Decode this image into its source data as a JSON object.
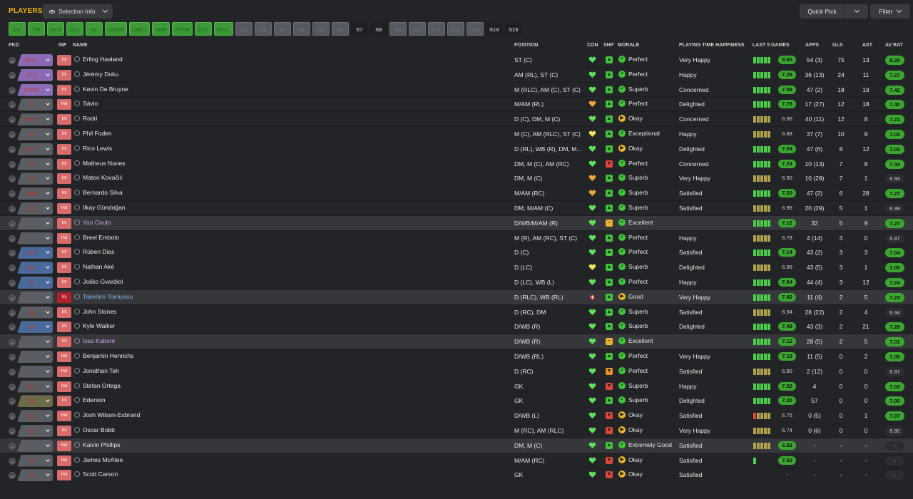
{
  "header": {
    "title": "PLAYERS",
    "selection_label": "Selection Info",
    "quick_pick_label": "Quick Pick",
    "filter_label": "Filter"
  },
  "colors": {
    "accent": "#f5b400",
    "green": "#3aa62f",
    "red": "#c7312b",
    "yellow": "#e8b52a",
    "purple": "#8b6bb5",
    "blue": "#4a6a9c",
    "olive": "#6b6a4a"
  },
  "chips": [
    {
      "label": "GK",
      "state": "on"
    },
    {
      "label": "DR",
      "state": "on"
    },
    {
      "label": "DCR",
      "state": "on"
    },
    {
      "label": "DCL",
      "state": "on"
    },
    {
      "label": "DL",
      "state": "on"
    },
    {
      "label": "OMCR",
      "state": "on"
    },
    {
      "label": "DMCL",
      "state": "on"
    },
    {
      "label": "AMR",
      "state": "on"
    },
    {
      "label": "STCR",
      "state": "on"
    },
    {
      "label": "STC",
      "state": "on"
    },
    {
      "label": "STCL",
      "state": "on"
    },
    {
      "label": "S1",
      "state": "off"
    },
    {
      "label": "S2",
      "state": "off"
    },
    {
      "label": "S3",
      "state": "off"
    },
    {
      "label": "S4",
      "state": "off"
    },
    {
      "label": "S5",
      "state": "off"
    },
    {
      "label": "S6",
      "state": "off"
    },
    {
      "label": "S7",
      "state": "plain"
    },
    {
      "label": "S8",
      "state": "plain"
    },
    {
      "label": "S9",
      "state": "off"
    },
    {
      "label": "S10",
      "state": "off"
    },
    {
      "label": "S11",
      "state": "off"
    },
    {
      "label": "S12",
      "state": "off"
    },
    {
      "label": "S13",
      "state": "off"
    },
    {
      "label": "S14",
      "state": "plain"
    },
    {
      "label": "S15",
      "state": "plain"
    }
  ],
  "columns": {
    "pkd": "PKD",
    "inf": "INF",
    "name": "NAME",
    "position": "POSITION",
    "con": "CON",
    "shp": "SHP",
    "morale": "MORALE",
    "pth": "PLAYING TIME HAPPINESS",
    "last5": "LAST 5 GAMES",
    "apps": "APPS",
    "gls": "GLS",
    "ast": "AST",
    "avrat": "AV RAT"
  },
  "players": [
    {
      "pick": "STCL",
      "pick_color": "purple",
      "inf": "Int",
      "name": "Erling Haaland",
      "name_color": "",
      "position": "ST (C)",
      "con": "green",
      "shp": "up",
      "shp_color": "green",
      "morale": "Perfect",
      "morale_color": "green",
      "pth": "Very Happy",
      "form": [
        "g",
        "g",
        "g",
        "g",
        "g"
      ],
      "last": "8.60",
      "last_hi": true,
      "apps": "54 (3)",
      "gls": "75",
      "ast": "13",
      "avrat": "8.20",
      "avrat_hi": true,
      "hl": false
    },
    {
      "pick": "STC",
      "pick_color": "purple",
      "inf": "Int",
      "name": "Jérémy Doku",
      "name_color": "",
      "position": "AM (RL), ST (C)",
      "con": "green",
      "shp": "up",
      "shp_color": "green",
      "morale": "Perfect",
      "morale_color": "green",
      "pth": "Happy",
      "form": [
        "g",
        "g",
        "g",
        "g",
        "g"
      ],
      "last": "7.26",
      "last_hi": true,
      "apps": "36 (13)",
      "gls": "24",
      "ast": "11",
      "avrat": "7.27",
      "avrat_hi": true,
      "hl": false
    },
    {
      "pick": "STCR",
      "pick_color": "purple",
      "inf": "Int",
      "name": "Kevin De Bruyne",
      "name_color": "",
      "position": "M (RLC), AM (C), ST (C)",
      "con": "green",
      "shp": "up",
      "shp_color": "green",
      "morale": "Superb",
      "morale_color": "green",
      "pth": "Concerned",
      "form": [
        "g",
        "g",
        "g",
        "g",
        "g"
      ],
      "last": "7.08",
      "last_hi": true,
      "apps": "47 (2)",
      "gls": "18",
      "ast": "19",
      "avrat": "7.42",
      "avrat_hi": true,
      "hl": false
    },
    {
      "pick": "DL",
      "pick_color": "red",
      "inf": "Hol",
      "name": "Sávio",
      "name_color": "",
      "position": "M/AM (RL)",
      "con": "orange",
      "shp": "up",
      "shp_color": "green",
      "morale": "Perfect",
      "morale_color": "green",
      "pth": "Delighted",
      "form": [
        "g",
        "g",
        "g",
        "g",
        "g"
      ],
      "last": "7.78",
      "last_hi": true,
      "apps": "17 (27)",
      "gls": "12",
      "ast": "18",
      "avrat": "7.40",
      "avrat_hi": true,
      "hl": false
    },
    {
      "pick": "DMCL",
      "pick_color": "red",
      "inf": "Int",
      "name": "Rodri",
      "name_color": "",
      "position": "D (C), DM, M (C)",
      "con": "green",
      "shp": "up",
      "shp_color": "green",
      "morale": "Okay",
      "morale_color": "yellow",
      "pth": "Concerned",
      "form": [
        "o",
        "o",
        "o",
        "o",
        "o"
      ],
      "last": "6.96",
      "last_hi": false,
      "apps": "40 (11)",
      "gls": "12",
      "ast": "8",
      "avrat": "7.21",
      "avrat_hi": true,
      "hl": false
    },
    {
      "pick": "S2",
      "pick_color": "red",
      "inf": "Int",
      "name": "Phil Foden",
      "name_color": "",
      "position": "M (C), AM (RLC), ST (C)",
      "con": "yellow",
      "shp": "up",
      "shp_color": "green",
      "morale": "Exceptional",
      "morale_color": "green",
      "pth": "Happy",
      "form": [
        "o",
        "o",
        "o",
        "o",
        "o"
      ],
      "last": "6.88",
      "last_hi": false,
      "apps": "37 (7)",
      "gls": "10",
      "ast": "9",
      "avrat": "7.03",
      "avrat_hi": true,
      "hl": false
    },
    {
      "pick": "DM...",
      "pick_color": "red",
      "inf": "Int",
      "name": "Rico Lewis",
      "name_color": "",
      "position": "D (RL), WB (R), DM, M...",
      "con": "green",
      "shp": "up",
      "shp_color": "green",
      "morale": "Okay",
      "morale_color": "yellow",
      "pth": "Delighted",
      "form": [
        "g",
        "g",
        "g",
        "g",
        "g"
      ],
      "last": "7.04",
      "last_hi": true,
      "apps": "47 (6)",
      "gls": "8",
      "ast": "12",
      "avrat": "7.03",
      "avrat_hi": true,
      "hl": false
    },
    {
      "pick": "S4",
      "pick_color": "red",
      "inf": "Int",
      "name": "Matheus Nunes",
      "name_color": "",
      "position": "DM, M (C), AM (RC)",
      "con": "green",
      "shp": "down",
      "shp_color": "red",
      "morale": "Perfect",
      "morale_color": "green",
      "pth": "Concerned",
      "form": [
        "g",
        "g",
        "g",
        "g",
        "g"
      ],
      "last": "7.24",
      "last_hi": true,
      "apps": "10 (13)",
      "gls": "7",
      "ast": "8",
      "avrat": "7.44",
      "avrat_hi": true,
      "hl": false
    },
    {
      "pick": "S5",
      "pick_color": "red",
      "inf": "Int",
      "name": "Mateo Kovačić",
      "name_color": "",
      "position": "DM, M (C)",
      "con": "orange",
      "shp": "up",
      "shp_color": "green",
      "morale": "Superb",
      "morale_color": "green",
      "pth": "Very Happy",
      "form": [
        "o",
        "o",
        "o",
        "o",
        "o"
      ],
      "last": "6.90",
      "last_hi": false,
      "apps": "10 (29)",
      "gls": "7",
      "ast": "1",
      "avrat": "6.94",
      "avrat_hi": false,
      "hl": false
    },
    {
      "pick": "AMR",
      "pick_color": "red",
      "inf": "Int",
      "name": "Bernardo Silva",
      "name_color": "",
      "position": "M/AM (RC)",
      "con": "orange",
      "shp": "up",
      "shp_color": "green",
      "morale": "Superb",
      "morale_color": "green",
      "pth": "Satisfied",
      "form": [
        "g",
        "g",
        "g",
        "g",
        "g"
      ],
      "last": "7.20",
      "last_hi": true,
      "apps": "47 (2)",
      "gls": "6",
      "ast": "28",
      "avrat": "7.27",
      "avrat_hi": true,
      "hl": false
    },
    {
      "pick": "S10",
      "pick_color": "red",
      "inf": "Hol",
      "name": "İlkay Gündoğan",
      "name_color": "",
      "position": "DM, M/AM (C)",
      "con": "green",
      "shp": "up",
      "shp_color": "green",
      "morale": "Superb",
      "morale_color": "green",
      "pth": "Satisfied",
      "form": [
        "o",
        "o",
        "o",
        "o",
        "o"
      ],
      "last": "6.96",
      "last_hi": false,
      "apps": "20 (29)",
      "gls": "5",
      "ast": "1",
      "avrat": "6.99",
      "avrat_hi": false,
      "hl": false
    },
    {
      "pick": "-",
      "pick_color": "red",
      "inf": "Int",
      "name": "Yan Couto",
      "name_color": "purple",
      "position": "D/WB/M/AM (R)",
      "con": "green",
      "shp": "flat",
      "shp_color": "yellow",
      "morale": "Excellent",
      "morale_color": "green",
      "pth": "",
      "form": [
        "g",
        "g",
        "g",
        "g",
        "g"
      ],
      "last": "7.12",
      "last_hi": true,
      "apps": "32",
      "gls": "5",
      "ast": "9",
      "avrat": "7.27",
      "avrat_hi": true,
      "hl": true
    },
    {
      "pick": "-",
      "pick_color": "red",
      "inf": "Hol",
      "name": "Breel Embolo",
      "name_color": "",
      "position": "M (R), AM (RC), ST (C)",
      "con": "green",
      "shp": "up",
      "shp_color": "green",
      "morale": "Perfect",
      "morale_color": "green",
      "pth": "Happy",
      "form": [
        "o",
        "o",
        "o",
        "o",
        "o"
      ],
      "last": "6.78",
      "last_hi": false,
      "apps": "4 (14)",
      "gls": "3",
      "ast": "0",
      "avrat": "6.87",
      "avrat_hi": false,
      "hl": false
    },
    {
      "pick": "DCR",
      "pick_color": "blue",
      "inf": "Int",
      "name": "Rúben Dias",
      "name_color": "",
      "position": "D (C)",
      "con": "green",
      "shp": "up",
      "shp_color": "green",
      "morale": "Perfect",
      "morale_color": "green",
      "pth": "Satisfied",
      "form": [
        "g",
        "g",
        "g",
        "g",
        "g"
      ],
      "last": "7.14",
      "last_hi": true,
      "apps": "43 (2)",
      "gls": "3",
      "ast": "3",
      "avrat": "7.04",
      "avrat_hi": true,
      "hl": false
    },
    {
      "pick": "DCL",
      "pick_color": "blue",
      "inf": "Int",
      "name": "Nathan Aké",
      "name_color": "",
      "position": "D (LC)",
      "con": "yellow",
      "shp": "up",
      "shp_color": "green",
      "morale": "Superb",
      "morale_color": "green",
      "pth": "Delighted",
      "form": [
        "o",
        "o",
        "o",
        "o",
        "o"
      ],
      "last": "6.96",
      "last_hi": false,
      "apps": "43 (5)",
      "gls": "3",
      "ast": "1",
      "avrat": "7.05",
      "avrat_hi": true,
      "hl": false
    },
    {
      "pick": "DL",
      "pick_color": "blue",
      "inf": "Int",
      "name": "Joško Gvardiol",
      "name_color": "",
      "position": "D (LC), WB (L)",
      "con": "green",
      "shp": "up",
      "shp_color": "green",
      "morale": "Perfect",
      "morale_color": "green",
      "pth": "Happy",
      "form": [
        "g",
        "g",
        "g",
        "g",
        "g"
      ],
      "last": "7.64",
      "last_hi": true,
      "apps": "44 (4)",
      "gls": "3",
      "ast": "12",
      "avrat": "7.24",
      "avrat_hi": true,
      "hl": false
    },
    {
      "pick": "-",
      "pick_color": "red",
      "inf": "Inj",
      "name": "Takehiro Tomiyasu",
      "name_color": "blue",
      "position": "D (RLC), WB (RL)",
      "con": "injury",
      "shp": "up",
      "shp_color": "green",
      "morale": "Good",
      "morale_color": "yellow",
      "pth": "Very Happy",
      "form": [
        "g",
        "g",
        "g",
        "g",
        "g"
      ],
      "last": "7.42",
      "last_hi": true,
      "apps": "11 (4)",
      "gls": "2",
      "ast": "5",
      "avrat": "7.23",
      "avrat_hi": true,
      "hl": true
    },
    {
      "pick": "S6",
      "pick_color": "red",
      "inf": "Int",
      "name": "John Stones",
      "name_color": "",
      "position": "D (RC), DM",
      "con": "green",
      "shp": "up",
      "shp_color": "green",
      "morale": "Superb",
      "morale_color": "green",
      "pth": "Satisfied",
      "form": [
        "o",
        "o",
        "o",
        "o",
        "o"
      ],
      "last": "6.94",
      "last_hi": false,
      "apps": "28 (22)",
      "gls": "2",
      "ast": "4",
      "avrat": "6.94",
      "avrat_hi": false,
      "hl": false
    },
    {
      "pick": "DR",
      "pick_color": "blue",
      "inf": "Int",
      "name": "Kyle Walker",
      "name_color": "",
      "position": "D/WB (R)",
      "con": "green",
      "shp": "up",
      "shp_color": "green",
      "morale": "Superb",
      "morale_color": "green",
      "pth": "Delighted",
      "form": [
        "g",
        "g",
        "g",
        "g",
        "g"
      ],
      "last": "7.48",
      "last_hi": true,
      "apps": "43 (3)",
      "gls": "2",
      "ast": "21",
      "avrat": "7.26",
      "avrat_hi": true,
      "hl": false
    },
    {
      "pick": "-",
      "pick_color": "red",
      "inf": "Int",
      "name": "Issa Kaboré",
      "name_color": "purple",
      "position": "D/WB (R)",
      "con": "green",
      "shp": "flat",
      "shp_color": "yellow",
      "morale": "Excellent",
      "morale_color": "green",
      "pth": "",
      "form": [
        "g",
        "g",
        "g",
        "g",
        "g"
      ],
      "last": "7.12",
      "last_hi": true,
      "apps": "28 (5)",
      "gls": "2",
      "ast": "5",
      "avrat": "7.01",
      "avrat_hi": true,
      "hl": true
    },
    {
      "pick": "-",
      "pick_color": "red",
      "inf": "Hol",
      "name": "Benjamin Henrichs",
      "name_color": "",
      "position": "D/WB (RL)",
      "con": "green",
      "shp": "up",
      "shp_color": "green",
      "morale": "Perfect",
      "morale_color": "green",
      "pth": "Very Happy",
      "form": [
        "g",
        "g",
        "g",
        "g",
        "g"
      ],
      "last": "7.10",
      "last_hi": true,
      "apps": "11 (5)",
      "gls": "0",
      "ast": "2",
      "avrat": "7.05",
      "avrat_hi": true,
      "hl": false
    },
    {
      "pick": "-",
      "pick_color": "red",
      "inf": "Hol",
      "name": "Jonathan Tah",
      "name_color": "",
      "position": "D (RC)",
      "con": "green",
      "shp": "down",
      "shp_color": "orange",
      "morale": "Perfect",
      "morale_color": "green",
      "pth": "Satisfied",
      "form": [
        "o",
        "o",
        "o",
        "o",
        "o"
      ],
      "last": "6.90",
      "last_hi": false,
      "apps": "2 (12)",
      "gls": "0",
      "ast": "0",
      "avrat": "6.87",
      "avrat_hi": false,
      "hl": false
    },
    {
      "pick": "S12",
      "pick_color": "red",
      "inf": "Hol",
      "name": "Stefan Ortega",
      "name_color": "",
      "position": "GK",
      "con": "green",
      "shp": "down",
      "shp_color": "red",
      "morale": "Superb",
      "morale_color": "green",
      "pth": "Happy",
      "form": [
        "g",
        "g",
        "g",
        "g",
        "g"
      ],
      "last": "7.02",
      "last_hi": true,
      "apps": "4",
      "gls": "0",
      "ast": "0",
      "avrat": "7.03",
      "avrat_hi": true,
      "hl": false
    },
    {
      "pick": "GK",
      "pick_color": "olive",
      "inf": "Int",
      "name": "Ederson",
      "name_color": "",
      "position": "GK",
      "con": "green",
      "shp": "up",
      "shp_color": "green",
      "morale": "Superb",
      "morale_color": "green",
      "pth": "Delighted",
      "form": [
        "g",
        "g",
        "g",
        "g",
        "g"
      ],
      "last": "7.20",
      "last_hi": true,
      "apps": "57",
      "gls": "0",
      "ast": "0",
      "avrat": "7.00",
      "avrat_hi": true,
      "hl": false
    },
    {
      "pick": "S13",
      "pick_color": "red",
      "inf": "Hol",
      "name": "Josh Wilson-Esbrand",
      "name_color": "",
      "position": "D/WB (L)",
      "con": "green",
      "shp": "down",
      "shp_color": "red",
      "morale": "Okay",
      "morale_color": "yellow",
      "pth": "Satisfied",
      "form": [
        "r",
        "o",
        "o",
        "o",
        "o"
      ],
      "last": "6.75",
      "last_hi": false,
      "apps": "0 (5)",
      "gls": "0",
      "ast": "1",
      "avrat": "7.07",
      "avrat_hi": true,
      "hl": false
    },
    {
      "pick": "S11",
      "pick_color": "red",
      "inf": "Int",
      "name": "Oscar Bobb",
      "name_color": "",
      "position": "M (RC), AM (RLC)",
      "con": "green",
      "shp": "down",
      "shp_color": "red",
      "morale": "Okay",
      "morale_color": "yellow",
      "pth": "Very Happy",
      "form": [
        "o",
        "o",
        "o",
        "o",
        "o"
      ],
      "last": "6.74",
      "last_hi": false,
      "apps": "0 (6)",
      "gls": "0",
      "ast": "0",
      "avrat": "6.80",
      "avrat_hi": false,
      "hl": false
    },
    {
      "pick": "-",
      "pick_color": "red",
      "inf": "Hol",
      "name": "Kalvin Phillips",
      "name_color": "",
      "position": "DM, M (C)",
      "con": "green",
      "shp": "up",
      "shp_color": "green",
      "morale": "Extremely Good",
      "morale_color": "green",
      "pth": "Satisfied",
      "form": [
        "o",
        "o",
        "o",
        "o",
        "o"
      ],
      "last": "6.82",
      "last_hi": true,
      "apps": "-",
      "gls": "-",
      "ast": "-",
      "avrat": "-",
      "avrat_hi": false,
      "hl": true
    },
    {
      "pick": "S9",
      "pick_color": "red",
      "inf": "Hol",
      "name": "James McAtee",
      "name_color": "",
      "position": "M/AM (RC)",
      "con": "green",
      "shp": "down",
      "shp_color": "red",
      "morale": "Okay",
      "morale_color": "yellow",
      "pth": "Satisfied",
      "form": [
        "g"
      ],
      "last": "7.60",
      "last_hi": true,
      "apps": "-",
      "gls": "-",
      "ast": "-",
      "avrat": "-",
      "avrat_hi": false,
      "hl": false
    },
    {
      "pick": "S8",
      "pick_color": "red",
      "inf": "Hol",
      "name": "Scott Carson",
      "name_color": "",
      "position": "GK",
      "con": "green",
      "shp": "down",
      "shp_color": "red",
      "morale": "Okay",
      "morale_color": "yellow",
      "pth": "Satisfied",
      "form": [],
      "last": "-",
      "last_hi": false,
      "apps": "-",
      "gls": "-",
      "ast": "-",
      "avrat": "-",
      "avrat_hi": false,
      "hl": false
    }
  ]
}
